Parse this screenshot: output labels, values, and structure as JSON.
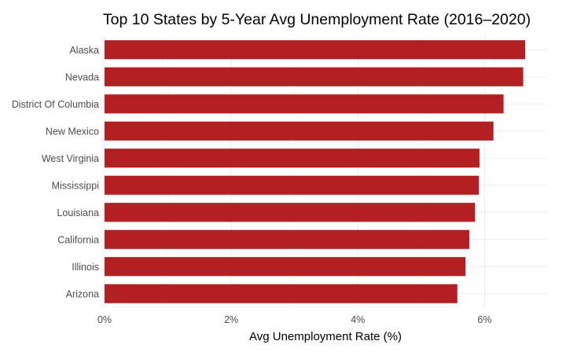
{
  "chart_data": {
    "type": "bar",
    "orientation": "horizontal",
    "title": "Top 10 States by 5-Year Avg Unemployment Rate (2016–2020)",
    "xlabel": "Avg Unemployment Rate (%)",
    "ylabel": "",
    "categories": [
      "Alaska",
      "Nevada",
      "District Of Columbia",
      "New Mexico",
      "West Virginia",
      "Mississippi",
      "Louisiana",
      "California",
      "Illinois",
      "Arizona"
    ],
    "values": [
      6.64,
      6.61,
      6.3,
      6.14,
      5.92,
      5.91,
      5.85,
      5.76,
      5.7,
      5.57
    ],
    "xlim": [
      0,
      7
    ],
    "x_ticks": [
      0,
      2,
      4,
      6
    ],
    "x_tick_labels": [
      "0%",
      "2%",
      "4%",
      "6%"
    ],
    "grid": true,
    "bar_color": "#b22024"
  }
}
